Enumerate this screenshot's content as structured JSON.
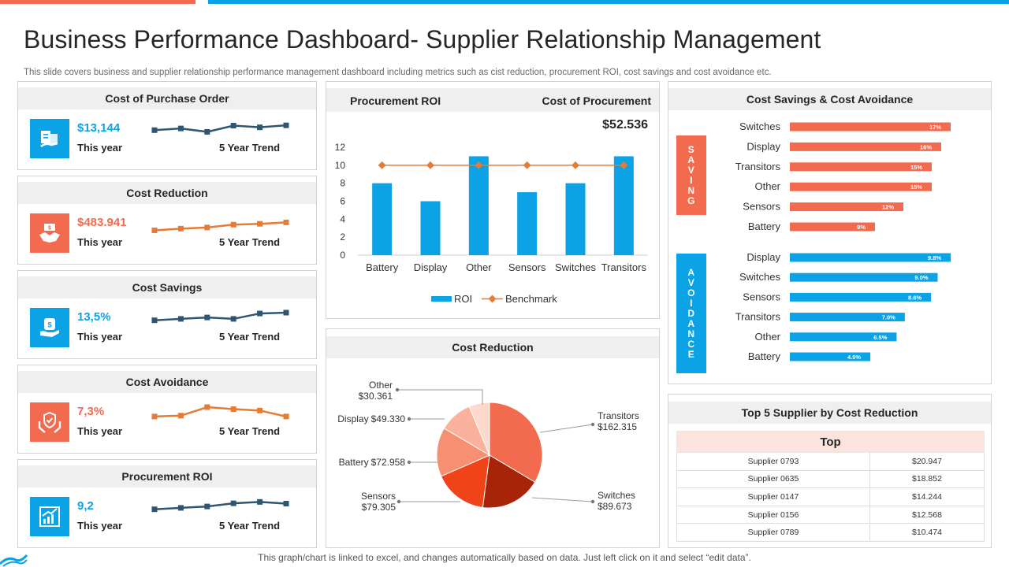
{
  "header": {
    "title": "Business Performance Dashboard- Supplier Relationship Management",
    "subtitle": "This slide covers business and supplier relationship performance management dashboard including metrics such as cist reduction, procurement ROI, cost savings and cost avoidance etc."
  },
  "footer": {
    "note": "This graph/chart is linked to excel, and changes automatically based on data. Just left click on it and select “edit data”."
  },
  "colors": {
    "blue": "#0ba3e6",
    "orange": "#f26b4f",
    "navy": "#2f5670",
    "orange_dark": "#e67b35"
  },
  "kpis": [
    {
      "title": "Cost of Purchase  Order",
      "value": "$13,144",
      "sub": "This year",
      "trend_label": "5 Year Trend",
      "icon": "purchase-order-icon",
      "accent": "#0ba3e6",
      "trend_color": "#2f5670",
      "trend": [
        5.2,
        5.8,
        4.6,
        6.8,
        6.2,
        6.9
      ]
    },
    {
      "title": "Cost Reduction",
      "value": "$483.941",
      "sub": "This year",
      "trend_label": "5 Year Trend",
      "icon": "handshake-icon",
      "accent": "#f26b4f",
      "trend_color": "#e67b35",
      "trend": [
        3.2,
        3.8,
        4.2,
        5.2,
        5.5,
        6.0
      ]
    },
    {
      "title": "Cost Savings",
      "value": "13,5%",
      "sub": "This year",
      "trend_label": "5 Year Trend",
      "icon": "money-hand-icon",
      "accent": "#0ba3e6",
      "trend_color": "#2f5670",
      "trend": [
        4.8,
        5.3,
        5.8,
        5.3,
        7.2,
        7.5
      ]
    },
    {
      "title": "Cost Avoidance",
      "value": "7,3%",
      "sub": "This year",
      "trend_label": "5 Year Trend",
      "icon": "shield-hands-icon",
      "accent": "#f26b4f",
      "trend_color": "#e67b35",
      "trend": [
        4.2,
        4.5,
        7.5,
        6.8,
        6.3,
        4.2
      ]
    },
    {
      "title": "Procurement ROI",
      "value": "9,2",
      "sub": "This year",
      "trend_label": "5 Year Trend",
      "icon": "growth-chart-icon",
      "accent": "#0ba3e6",
      "trend_color": "#2f5670",
      "trend": [
        4.8,
        5.3,
        5.8,
        6.9,
        7.4,
        6.8
      ]
    }
  ],
  "roi_panel": {
    "left_title": "Procurement ROI",
    "right_title": "Cost of Procurement",
    "total": "$52.536"
  },
  "pie_panel": {
    "title": "Cost Reduction"
  },
  "savings_panel": {
    "title": "Cost Savings & Cost Avoidance",
    "saving_label": "SAVING",
    "avoidance_label": "AVOIDANCE"
  },
  "supplier_panel": {
    "title": "Top 5 Supplier by Cost Reduction",
    "header": "Top",
    "rows": [
      {
        "supplier": "Supplier 0793",
        "amount": "$20.947"
      },
      {
        "supplier": "Supplier 0635",
        "amount": "$18.852"
      },
      {
        "supplier": "Supplier 0147",
        "amount": "$14.244"
      },
      {
        "supplier": "Supplier 0156",
        "amount": "$12.568"
      },
      {
        "supplier": "Supplier 0789",
        "amount": "$10.474"
      }
    ]
  },
  "chart_data": [
    {
      "type": "bar",
      "categories": [
        "Battery",
        "Display",
        "Other",
        "Sensors",
        "Switches",
        "Transitors"
      ],
      "series": [
        {
          "name": "ROI",
          "type": "bar",
          "values": [
            8,
            6,
            11,
            7,
            8,
            11
          ]
        },
        {
          "name": "Benchmark",
          "type": "line",
          "values": [
            10,
            10,
            10,
            10,
            10,
            10
          ]
        }
      ],
      "yticks": [
        "0",
        "2",
        "4",
        "6",
        "8",
        "10",
        "12"
      ],
      "ylim": [
        0,
        12
      ],
      "grid": false,
      "legend": "bottom"
    },
    {
      "type": "pie",
      "slices": [
        {
          "label": "Transitors",
          "value_label": "$162.315",
          "value": 162315,
          "color": "#f26b4f"
        },
        {
          "label": "Switches",
          "value_label": "$89.673",
          "value": 89673,
          "color": "#a82409"
        },
        {
          "label": "Sensors",
          "value_label": "$79.305",
          "value": 79305,
          "color": "#f0431a"
        },
        {
          "label": "Battery",
          "value_label": "$72.958",
          "value": 72958,
          "color": "#f78f73"
        },
        {
          "label": "Display",
          "value_label": "$49.330",
          "value": 49330,
          "color": "#fab19e"
        },
        {
          "label": "Other",
          "value_label": "$30.361",
          "value": 30361,
          "color": "#fdd9cd"
        }
      ]
    },
    {
      "type": "bar",
      "orientation": "horizontal",
      "group": "Saving",
      "categories": [
        "Switches",
        "Display",
        "Transitors",
        "Other",
        "Sensors",
        "Battery"
      ],
      "values": [
        17,
        16,
        15,
        15,
        12,
        9
      ],
      "value_labels": [
        "17%",
        "16%",
        "15%",
        "15%",
        "12%",
        "9%"
      ],
      "color": "#f26b4f"
    },
    {
      "type": "bar",
      "orientation": "horizontal",
      "group": "Avoidance",
      "categories": [
        "Display",
        "Switches",
        "Sensors",
        "Transitors",
        "Other",
        "Battery"
      ],
      "values": [
        9.8,
        9.0,
        8.6,
        7.0,
        6.5,
        4.9
      ],
      "value_labels": [
        "9.8%",
        "9.0%",
        "8.6%",
        "7.0%",
        "6.5%",
        "4.9%"
      ],
      "color": "#0ba3e6"
    }
  ]
}
